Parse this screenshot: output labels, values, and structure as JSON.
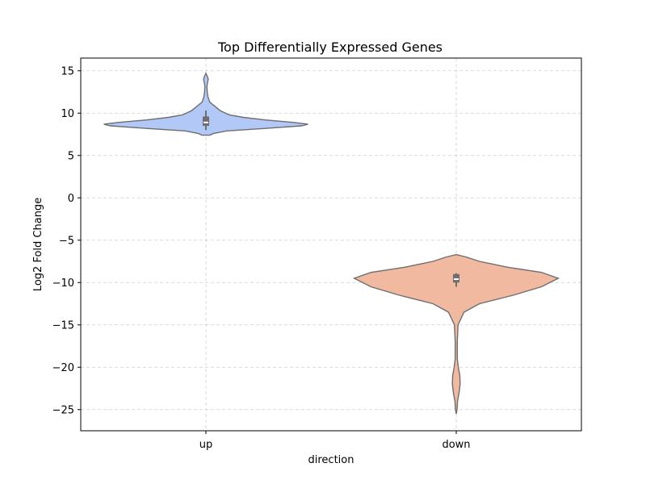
{
  "chart_data": {
    "type": "violin",
    "title": "Top Differentially Expressed Genes",
    "xlabel": "direction",
    "ylabel": "Log2 Fold Change",
    "ylim": [
      -27.5,
      16.5
    ],
    "yticks": [
      15,
      10,
      5,
      0,
      -5,
      -10,
      -15,
      -20,
      -25
    ],
    "ytick_labels": [
      "15",
      "10",
      "5",
      "0",
      "−5",
      "−10",
      "−15",
      "−20",
      "−25"
    ],
    "grid": true,
    "categories": [
      "up",
      "down"
    ],
    "violins": [
      {
        "name": "up",
        "color": "#b2c8f7",
        "edge_color": "#6e6e6e",
        "profile": [
          [
            7.4,
            0.03
          ],
          [
            7.6,
            0.06
          ],
          [
            7.9,
            0.16
          ],
          [
            8.2,
            0.46
          ],
          [
            8.5,
            0.74
          ],
          [
            8.7,
            0.79
          ],
          [
            8.9,
            0.68
          ],
          [
            9.2,
            0.46
          ],
          [
            9.5,
            0.29
          ],
          [
            9.8,
            0.18
          ],
          [
            10.3,
            0.11
          ],
          [
            10.8,
            0.07
          ],
          [
            11.3,
            0.03
          ],
          [
            11.9,
            0.016
          ],
          [
            12.5,
            0.01
          ],
          [
            13.2,
            0.008
          ],
          [
            13.7,
            0.014
          ],
          [
            14.0,
            0.018
          ],
          [
            14.3,
            0.012
          ],
          [
            14.7,
            0.0
          ]
        ],
        "median": 8.9,
        "q1": 8.5,
        "q3": 9.6,
        "whisker_low": 8.0,
        "whisker_high": 10.3
      },
      {
        "name": "down",
        "color": "#f0b9a0",
        "edge_color": "#6e6e6e",
        "profile": [
          [
            -25.5,
            0.0
          ],
          [
            -25.0,
            0.006
          ],
          [
            -24.0,
            0.01
          ],
          [
            -23.0,
            0.022
          ],
          [
            -22.0,
            0.03
          ],
          [
            -21.0,
            0.028
          ],
          [
            -20.0,
            0.016
          ],
          [
            -19.0,
            0.008
          ],
          [
            -17.0,
            0.008
          ],
          [
            -15.0,
            0.014
          ],
          [
            -13.5,
            0.06
          ],
          [
            -12.5,
            0.18
          ],
          [
            -11.5,
            0.44
          ],
          [
            -10.5,
            0.66
          ],
          [
            -9.5,
            0.79
          ],
          [
            -8.8,
            0.66
          ],
          [
            -8.2,
            0.4
          ],
          [
            -7.5,
            0.18
          ],
          [
            -7.0,
            0.08
          ],
          [
            -6.7,
            0.0
          ]
        ],
        "median": -9.6,
        "q1": -10.0,
        "q3": -9.0,
        "whisker_low": -10.5,
        "whisker_high": -8.9
      }
    ]
  }
}
